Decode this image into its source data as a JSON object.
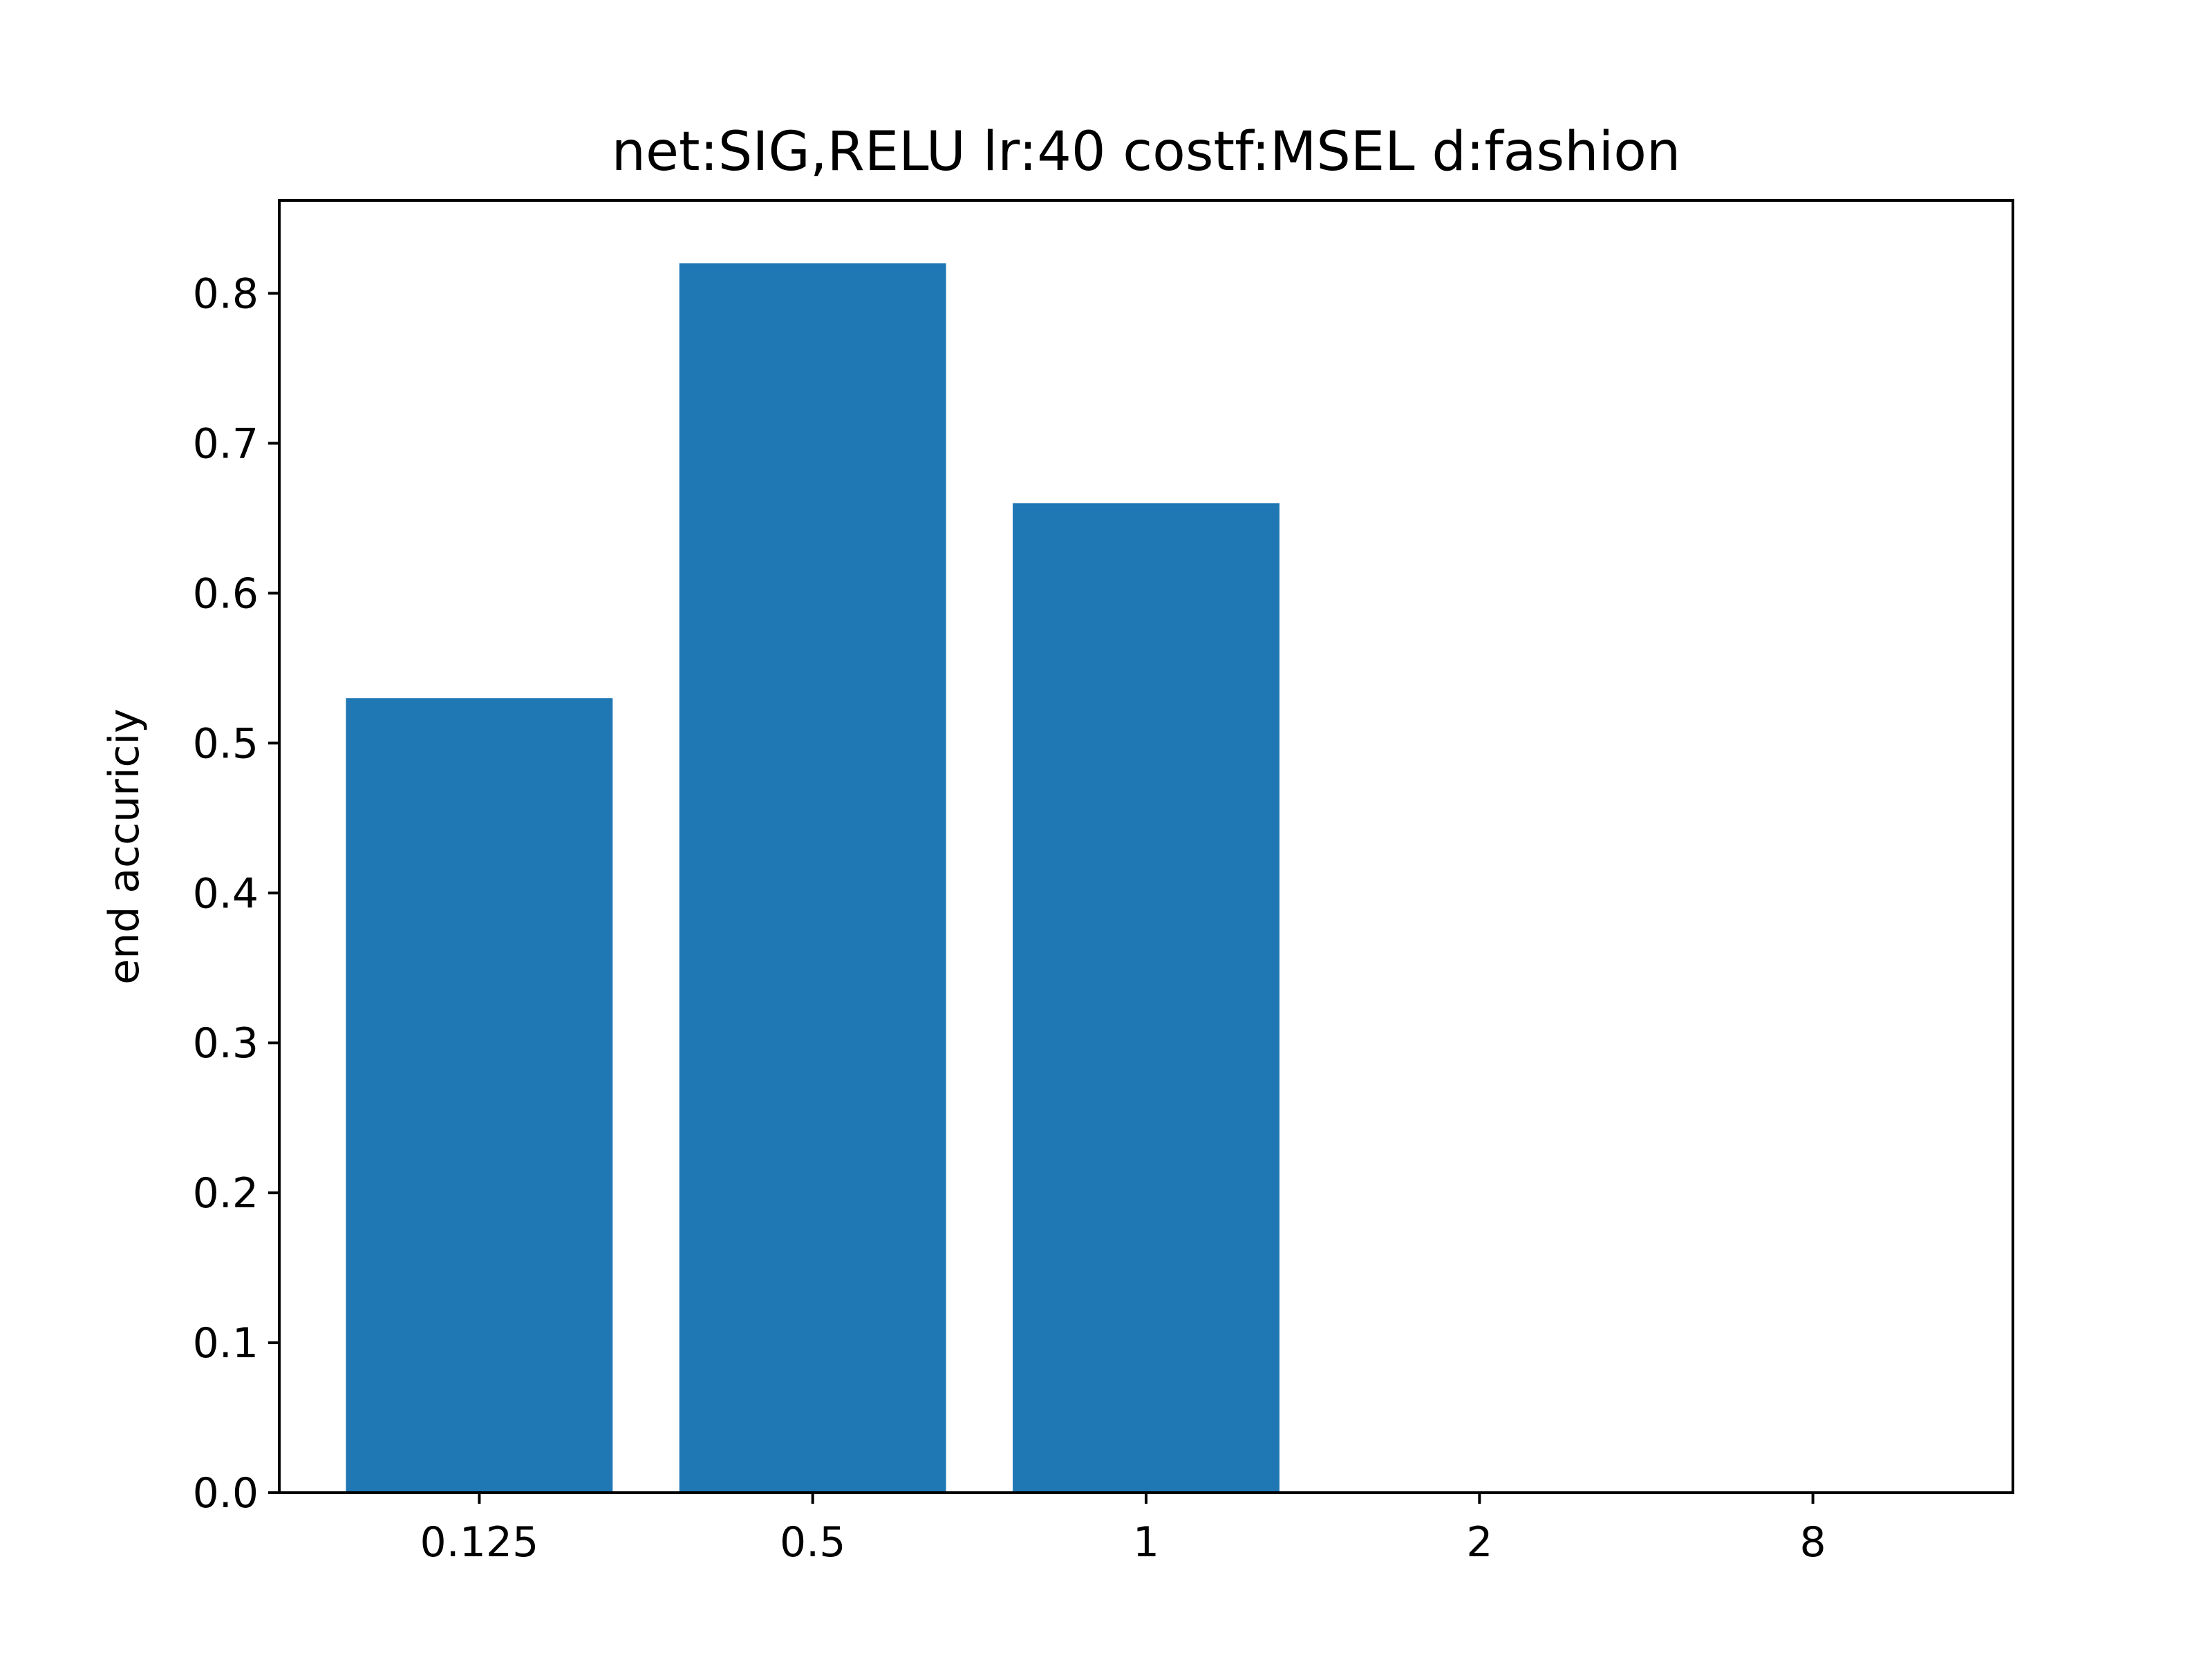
{
  "chart_data": {
    "type": "bar",
    "title": "net:SIG,RELU lr:40 costf:MSEL d:fashion",
    "xlabel": "",
    "ylabel": "end accuriciy",
    "categories": [
      "0.125",
      "0.5",
      "1",
      "2",
      "8"
    ],
    "values": [
      0.53,
      0.82,
      0.66,
      0.0,
      0.0
    ],
    "ylim": [
      0,
      0.862
    ],
    "yticks": [
      0.0,
      0.1,
      0.2,
      0.3,
      0.4,
      0.5,
      0.6,
      0.7,
      0.8
    ],
    "ytick_labels": [
      "0.0",
      "0.1",
      "0.2",
      "0.3",
      "0.4",
      "0.5",
      "0.6",
      "0.7",
      "0.8"
    ],
    "grid": false,
    "bar_color": "#1f77b4",
    "axis_color": "#000000"
  }
}
